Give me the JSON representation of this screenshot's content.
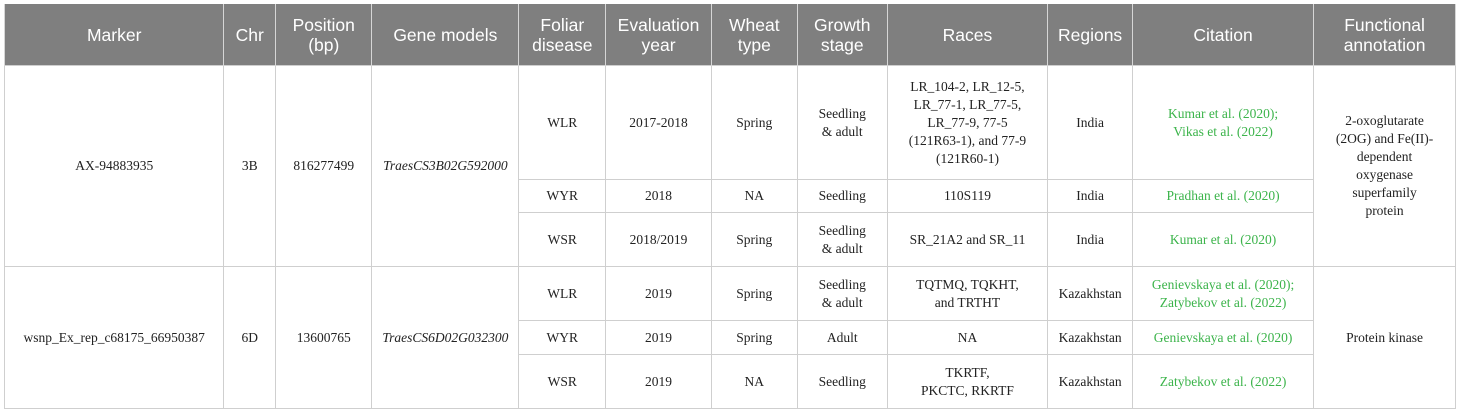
{
  "headers": [
    "Marker",
    "Chr",
    "Position\n(bp)",
    "Gene models",
    "Foliar\ndisease",
    "Evaluation\nyear",
    "Wheat\ntype",
    "Growth\nstage",
    "Races",
    "Regions",
    "Citation",
    "Functional\nannotation"
  ],
  "groups": [
    {
      "marker": "AX-94883935",
      "chr": "3B",
      "position": "816277499",
      "gene_model": "TraesCS3B02G592000",
      "annotation": "2-oxoglutarate\n(2OG) and Fe(II)-\ndependent\noxygenase\nsuperfamily\nprotein",
      "rows": [
        {
          "disease": "WLR",
          "year": "2017-2018",
          "type": "Spring",
          "stage": "Seedling\n& adult",
          "races": "LR_104-2, LR_12-5,\nLR_77-1, LR_77-5,\nLR_77-9, 77-5\n(121R63-1), and 77-9\n(121R60-1)",
          "region": "India",
          "citation": "Kumar et al. (2020);\nVikas et al. (2022)"
        },
        {
          "disease": "WYR",
          "year": "2018",
          "type": "NA",
          "stage": "Seedling",
          "races": "110S119",
          "region": "India",
          "citation": "Pradhan et al. (2020)"
        },
        {
          "disease": "WSR",
          "year": "2018/2019",
          "type": "Spring",
          "stage": "Seedling\n& adult",
          "races": "SR_21A2 and SR_11",
          "region": "India",
          "citation": "Kumar et al. (2020)"
        }
      ]
    },
    {
      "marker": "wsnp_Ex_rep_c68175_66950387",
      "chr": "6D",
      "position": "13600765",
      "gene_model": "TraesCS6D02G032300",
      "annotation": "Protein kinase",
      "rows": [
        {
          "disease": "WLR",
          "year": "2019",
          "type": "Spring",
          "stage": "Seedling\n& adult",
          "races": "TQTMQ, TQKHT,\nand TRTHT",
          "region": "Kazakhstan",
          "citation": "Genievskaya et al. (2020);\nZatybekov et al. (2022)"
        },
        {
          "disease": "WYR",
          "year": "2019",
          "type": "Spring",
          "stage": "Adult",
          "races": "NA",
          "region": "Kazakhstan",
          "citation": "Genievskaya et al. (2020)"
        },
        {
          "disease": "WSR",
          "year": "2019",
          "type": "NA",
          "stage": "Seedling",
          "races": "TKRTF,\nPKCTC, RKRTF",
          "region": "Kazakhstan",
          "citation": "Zatybekov et al. (2022)"
        }
      ]
    }
  ]
}
